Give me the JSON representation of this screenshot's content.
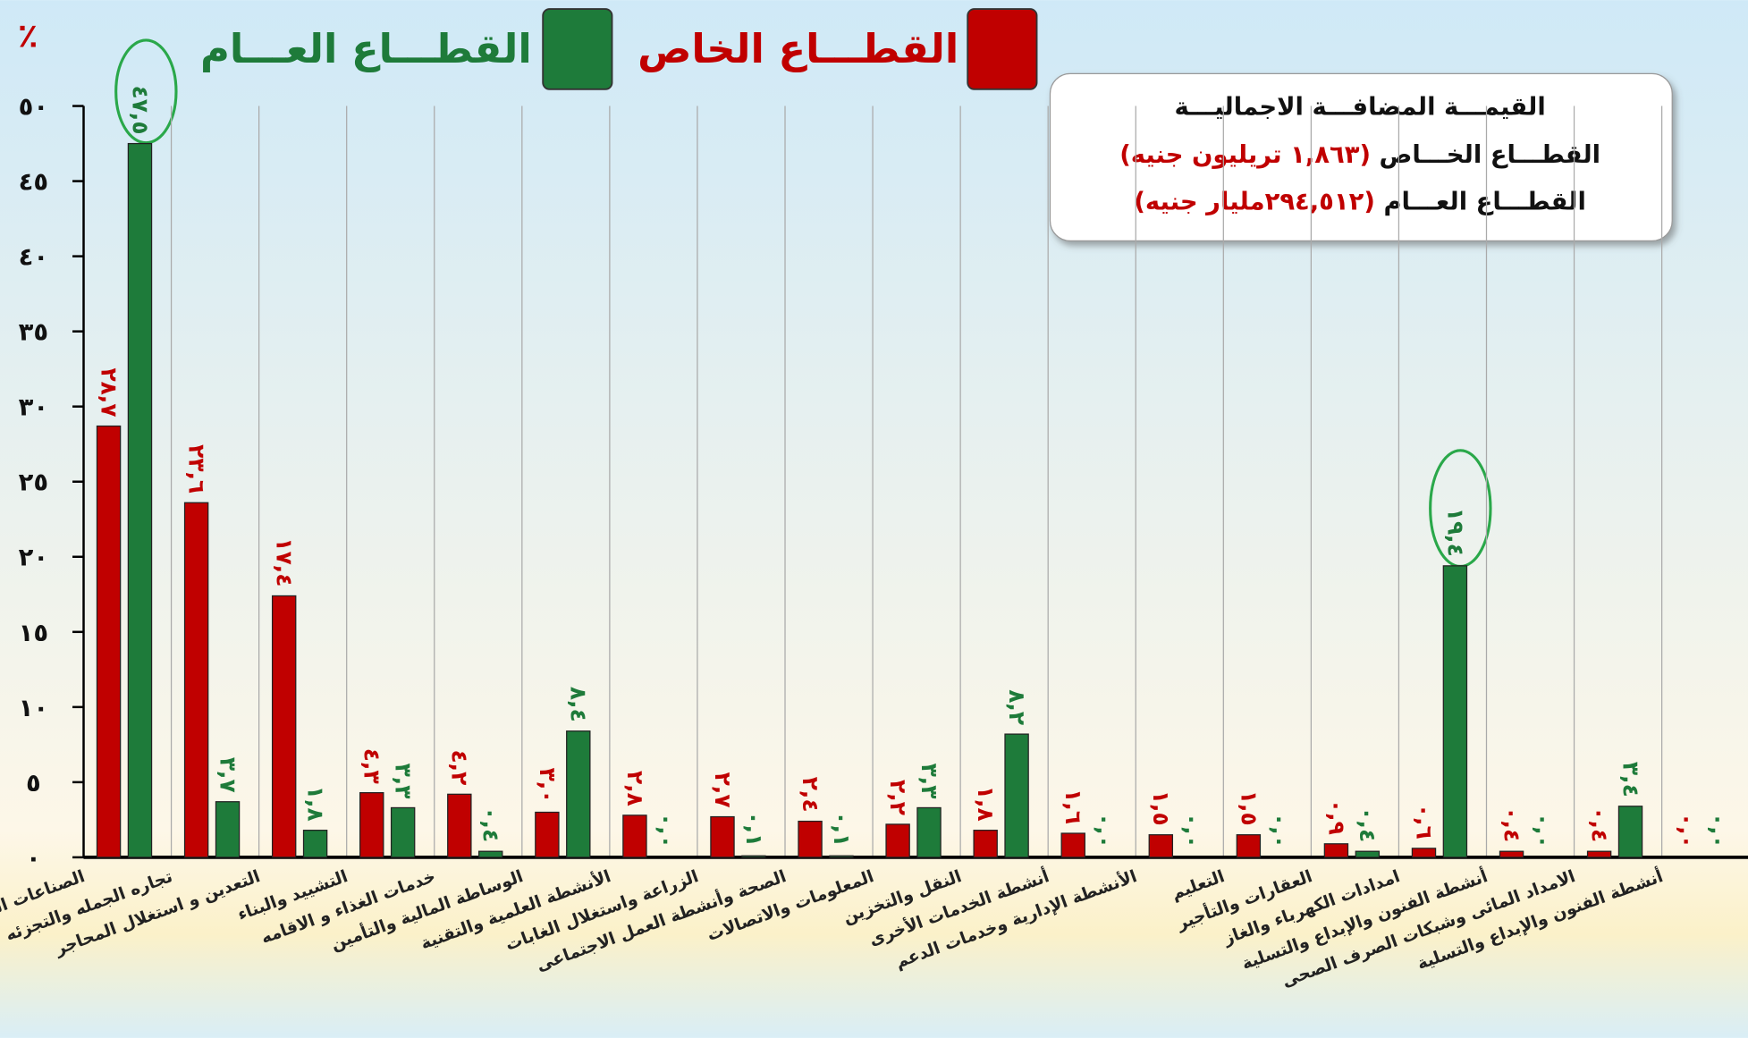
{
  "chart_data": {
    "type": "bar",
    "unit_label": "٪",
    "categories": [
      "الصناعات التحويلية",
      "تجاره الجمله والتجزئه",
      "التعدين و استغلال المحاجر",
      "التشييد والبناء",
      "خدمات الغذاء و الاقامه",
      "الوساطة المالية والتأمين",
      "الأنشطة العلمية والتقنية",
      "الزراعة واستغلال الغابات",
      "الصحة وأنشطة العمل الاجتماعى",
      "المعلومات والاتصالات",
      "النقل والتخزين",
      "أنشطة الخدمات الأخرى",
      "الأنشطة الإدارية وخدمات الدعم",
      "التعليم",
      "العقارات والتأجير",
      "امدادات الكهرباء والغاز",
      "أنشطة الفنون والإبداع والتسلية",
      "الامداد المائى وشبكات الصرف الصحى",
      "أنشطة الفنون والإبداع والتسلية"
    ],
    "series": [
      {
        "name": "القطـــاع الخاص",
        "color": "#c00000",
        "values": [
          28.7,
          23.6,
          17.4,
          4.3,
          4.2,
          3.0,
          2.8,
          2.7,
          2.4,
          2.2,
          1.8,
          1.6,
          1.5,
          1.5,
          0.9,
          0.6,
          0.4,
          0.4,
          0.0
        ],
        "value_labels": [
          "٢٨,٧",
          "٢٣,٦",
          "١٧,٤",
          "٤,٣",
          "٤,٢",
          "٣,٠",
          "٢,٨",
          "٢,٧",
          "٢,٤",
          "٢,٢",
          "١,٨",
          "١,٦",
          "١,٥",
          "١,٥",
          "٠,٩",
          "٠,٦",
          "٠,٤",
          "٠,٤",
          "٠,٠"
        ]
      },
      {
        "name": "القطـــاع العـــام",
        "color": "#1e7b3a",
        "values": [
          47.5,
          3.7,
          1.8,
          3.3,
          0.4,
          8.4,
          0.0,
          0.1,
          0.1,
          3.3,
          8.2,
          0.0,
          0.0,
          0.0,
          0.4,
          19.4,
          0.0,
          3.4,
          0.0
        ],
        "value_labels": [
          "٤٧,٥",
          "٣,٧",
          "١,٨",
          "٣,٣",
          "٠,٤",
          "٨,٤",
          "٠,٠",
          "٠,١",
          "٠,١",
          "٣,٣",
          "٨,٢",
          "٠,٠",
          "٠,٠",
          "٠,٠",
          "٠,٤",
          "١٩,٤",
          "٠,٠",
          "٣,٤",
          "٠,٠"
        ]
      }
    ],
    "ylim": [
      0,
      50
    ],
    "yticks": [
      {
        "value": 0,
        "label": "٠"
      },
      {
        "value": 5,
        "label": "٥"
      },
      {
        "value": 10,
        "label": "١٠"
      },
      {
        "value": 15,
        "label": "١٥"
      },
      {
        "value": 20,
        "label": "٢٠"
      },
      {
        "value": 25,
        "label": "٢٥"
      },
      {
        "value": 30,
        "label": "٣٠"
      },
      {
        "value": 35,
        "label": "٣٥"
      },
      {
        "value": 40,
        "label": "٤٠"
      },
      {
        "value": 45,
        "label": "٤٥"
      },
      {
        "value": 50,
        "label": "٥٠"
      }
    ],
    "legend": "top",
    "info_box": {
      "title": "القيمـــة المضافـــة الاجماليـــة",
      "lines": [
        {
          "label": "القطـــاع الخـــاص",
          "value": "(١,٨٦٣ تريليون جنيه)"
        },
        {
          "label": "القطـــاع العـــام",
          "value": "(٢٩٤,٥١٢مليار جنيه)"
        }
      ]
    }
  }
}
